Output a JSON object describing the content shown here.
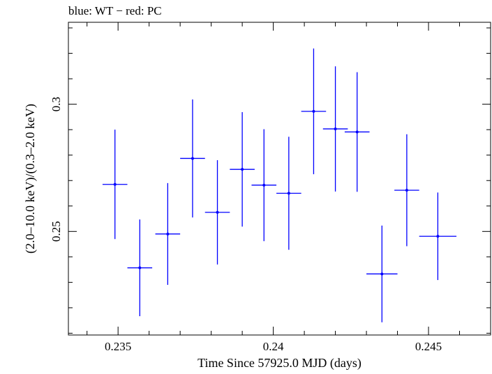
{
  "chart_data": {
    "type": "scatter",
    "title": "blue: WT − red: PC",
    "xlabel": "Time Since 57925.0 MJD (days)",
    "ylabel": "(2.0–10.0 keV)/(0.3–2.0 keV)",
    "xlim": [
      0.2334,
      0.247
    ],
    "ylim": [
      0.2093,
      0.3322
    ],
    "x_ticks": [
      {
        "value": 0.235,
        "label": "0.235"
      },
      {
        "value": 0.24,
        "label": "0.24"
      },
      {
        "value": 0.245,
        "label": "0.245"
      }
    ],
    "y_ticks": [
      {
        "value": 0.25,
        "label": "0.25"
      },
      {
        "value": 0.3,
        "label": "0.3"
      }
    ],
    "grid": false,
    "series": [
      {
        "color": "#0000ff",
        "points": [
          {
            "x": 0.2349,
            "xerr": 0.0004,
            "y": 0.2685,
            "yerr": 0.0215
          },
          {
            "x": 0.2357,
            "xerr": 0.0004,
            "y": 0.2357,
            "yerr": 0.019
          },
          {
            "x": 0.2366,
            "xerr": 0.0004,
            "y": 0.249,
            "yerr": 0.02
          },
          {
            "x": 0.2374,
            "xerr": 0.0004,
            "y": 0.2787,
            "yerr": 0.0232
          },
          {
            "x": 0.2382,
            "xerr": 0.0004,
            "y": 0.2575,
            "yerr": 0.0205
          },
          {
            "x": 0.239,
            "xerr": 0.0004,
            "y": 0.2744,
            "yerr": 0.0225
          },
          {
            "x": 0.2397,
            "xerr": 0.0004,
            "y": 0.2682,
            "yerr": 0.022
          },
          {
            "x": 0.2405,
            "xerr": 0.0004,
            "y": 0.265,
            "yerr": 0.0222
          },
          {
            "x": 0.2413,
            "xerr": 0.0004,
            "y": 0.2972,
            "yerr": 0.0247
          },
          {
            "x": 0.242,
            "xerr": 0.0004,
            "y": 0.2903,
            "yerr": 0.0246
          },
          {
            "x": 0.2427,
            "xerr": 0.0004,
            "y": 0.2891,
            "yerr": 0.0235
          },
          {
            "x": 0.2435,
            "xerr": 0.0005,
            "y": 0.2333,
            "yerr": 0.019
          },
          {
            "x": 0.2443,
            "xerr": 0.0004,
            "y": 0.2662,
            "yerr": 0.022
          },
          {
            "x": 0.2453,
            "xerr": 0.0006,
            "y": 0.2481,
            "yerr": 0.0172
          }
        ]
      }
    ]
  }
}
